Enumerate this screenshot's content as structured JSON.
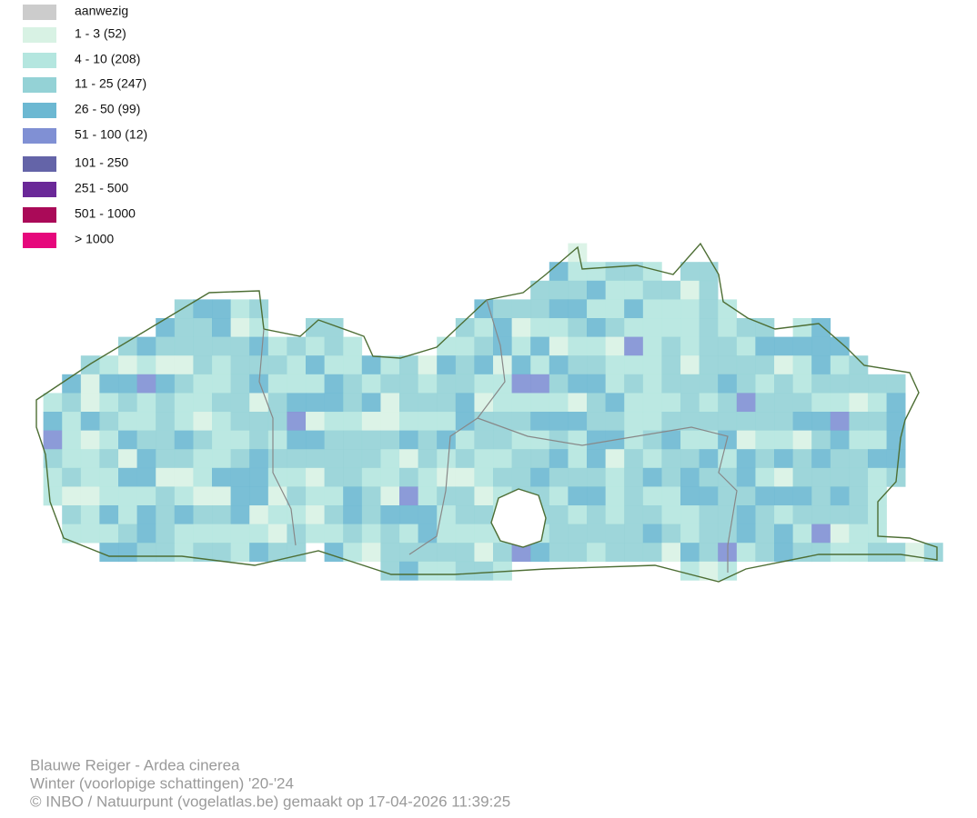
{
  "legend": [
    {
      "label": "aanwezig",
      "color": "#cccccc"
    },
    {
      "label": "1 - 3 (52)",
      "color": "#d8f2e4"
    },
    {
      "label": "4 - 10 (208)",
      "color": "#b4e6df"
    },
    {
      "label": "11 - 25 (247)",
      "color": "#94d2d6"
    },
    {
      "label": "26 - 50 (99)",
      "color": "#6cb8d2"
    },
    {
      "label": "51 - 100 (12)",
      "color": "#8090d4"
    },
    {
      "label": "101 - 250",
      "color": "#6464a8"
    },
    {
      "label": "251 - 500",
      "color": "#6a2898"
    },
    {
      "label": "501 - 1000",
      "color": "#aa0a58"
    },
    {
      "label": "> 1000",
      "color": "#e6087c"
    }
  ],
  "footer": {
    "species": "Blauwe Reiger - Ardea cinerea",
    "period": "Winter (voorlopige schattingen) '20-'24",
    "credit": "© INBO / Natuurpunt (vogelatlas.be) gemaakt op 17-04-2026 11:39:25"
  }
}
